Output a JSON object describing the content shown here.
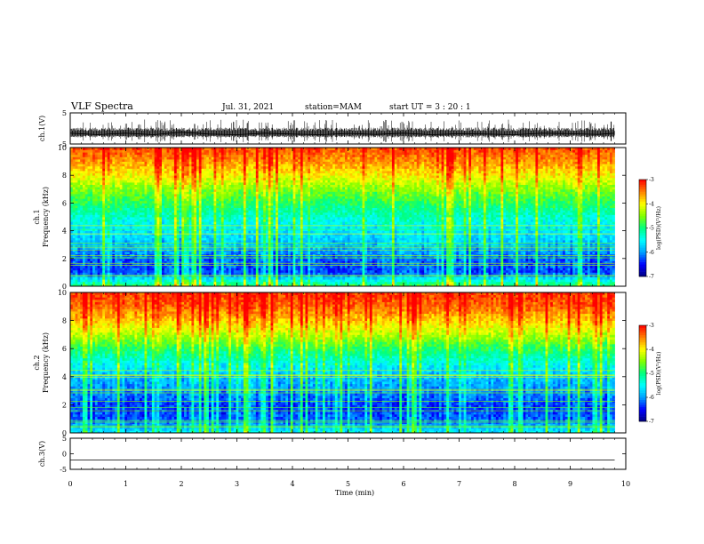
{
  "header": {
    "title": "VLF Spectra",
    "date": "Jul. 31, 2021",
    "station": "station=MAM",
    "start": "start UT =  3 : 20 : 1"
  },
  "chart_data": [
    {
      "type": "line",
      "panel": "ch1-waveform",
      "ylabel": "ch.1(V)",
      "ylim": [
        -5,
        5
      ],
      "yticks": [
        "5",
        "-5"
      ],
      "xlim": [
        0,
        10
      ],
      "x": [
        0,
        0.5,
        1,
        1.5,
        2,
        2.5,
        3,
        3.5,
        4,
        4.5,
        5,
        5.5,
        6,
        6.5,
        7,
        7.5,
        8,
        8.5,
        9,
        9.5,
        9.8
      ],
      "y": [
        -1.5,
        -2,
        -1.5,
        -2,
        -1.2,
        -1.8,
        -2,
        -1.5,
        -1.8,
        -2,
        -1.6,
        -1.9,
        -1.5,
        -2,
        -1.7,
        -1.8,
        -2,
        -1.5,
        -1.7,
        -1.9,
        -1.5
      ]
    },
    {
      "type": "heatmap",
      "panel": "ch1-spectrogram",
      "ylabel": "Frequency (kHz)",
      "channel_label": "ch.1",
      "ylim": [
        0,
        10
      ],
      "yticks": [
        "0",
        "2",
        "4",
        "6",
        "8",
        "10"
      ],
      "xlim": [
        0,
        9.8
      ],
      "colorbar": {
        "label": "log(PSD)(V²/Hz)",
        "range": [
          -7,
          -3
        ],
        "ticks": [
          "-3",
          "-4",
          "-5",
          "-6",
          "-7"
        ]
      },
      "freq_kHz": [
        0,
        1,
        2,
        3,
        4,
        5,
        6,
        7,
        8,
        9,
        10
      ],
      "log_psd_profile": [
        -4.8,
        -6.3,
        -6.2,
        -5.8,
        -5.6,
        -5.3,
        -4.9,
        -4.5,
        -4.0,
        -3.6,
        -3.3
      ]
    },
    {
      "type": "heatmap",
      "panel": "ch2-spectrogram",
      "ylabel": "Frequency (kHz)",
      "channel_label": "ch.2",
      "ylim": [
        0,
        10
      ],
      "yticks": [
        "0",
        "2",
        "4",
        "6",
        "8",
        "10"
      ],
      "xlim": [
        0,
        9.8
      ],
      "colorbar": {
        "label": "log(PSD)(V²/Hz)",
        "range": [
          -7,
          -3
        ],
        "ticks": [
          "-3",
          "-4",
          "-5",
          "-6",
          "-7"
        ]
      },
      "freq_kHz": [
        0,
        1,
        2,
        3,
        4,
        5,
        6,
        7,
        8,
        9,
        10
      ],
      "log_psd_profile": [
        -5.5,
        -6.2,
        -6.3,
        -6.0,
        -5.8,
        -5.4,
        -4.9,
        -4.3,
        -3.8,
        -3.4,
        -3.2
      ]
    },
    {
      "type": "line",
      "panel": "ch3-waveform",
      "ylabel": "ch.3(V)",
      "ylim": [
        -5,
        5
      ],
      "yticks": [
        "5",
        "0",
        "-5"
      ],
      "xlim": [
        0,
        10
      ],
      "x": [
        0,
        9.8
      ],
      "y": [
        -2,
        -2
      ]
    }
  ],
  "xaxis": {
    "label": "Time (min)",
    "ticks": [
      "0",
      "1",
      "2",
      "3",
      "4",
      "5",
      "6",
      "7",
      "8",
      "9",
      "10"
    ]
  },
  "colors": {
    "colormap": [
      "#000080",
      "#0000ff",
      "#00a0ff",
      "#00ffff",
      "#00ff80",
      "#80ff00",
      "#ffff00",
      "#ff8000",
      "#ff0000"
    ]
  }
}
